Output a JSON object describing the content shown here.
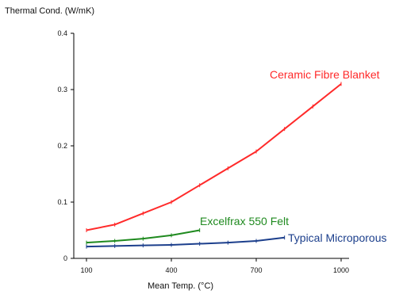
{
  "chart_data": {
    "type": "line",
    "title": "",
    "ylabel": "Thermal Cond. (W/mK)",
    "xlabel": "Mean Temp. (°C)",
    "xlim": [
      100,
      1000
    ],
    "ylim": [
      0,
      0.4
    ],
    "xticks": [
      100,
      400,
      700,
      1000
    ],
    "yticks": [
      0,
      0.1,
      0.2,
      0.3,
      0.4
    ],
    "ytick_labels": [
      "0",
      "0.1",
      "0.2",
      "0.3",
      "0.4"
    ],
    "grid": false,
    "legend": "inline labels",
    "series": [
      {
        "name": "Ceramic Fibre Blanket",
        "color": "#ff2a2a",
        "points": [
          [
            100,
            0.05
          ],
          [
            200,
            0.06
          ],
          [
            300,
            0.08
          ],
          [
            400,
            0.1
          ],
          [
            500,
            0.13
          ],
          [
            600,
            0.16
          ],
          [
            700,
            0.19
          ],
          [
            800,
            0.23
          ],
          [
            900,
            0.27
          ],
          [
            1000,
            0.31
          ]
        ]
      },
      {
        "name": "Excelfrax 550 Felt",
        "color": "#1f8a1f",
        "points": [
          [
            100,
            0.028
          ],
          [
            200,
            0.031
          ],
          [
            300,
            0.035
          ],
          [
            400,
            0.041
          ],
          [
            500,
            0.05
          ]
        ]
      },
      {
        "name": "Typical Microporous",
        "color": "#1c3f8c",
        "points": [
          [
            100,
            0.021
          ],
          [
            200,
            0.022
          ],
          [
            300,
            0.023
          ],
          [
            400,
            0.024
          ],
          [
            500,
            0.026
          ],
          [
            600,
            0.028
          ],
          [
            700,
            0.031
          ],
          [
            800,
            0.037
          ]
        ]
      }
    ]
  }
}
